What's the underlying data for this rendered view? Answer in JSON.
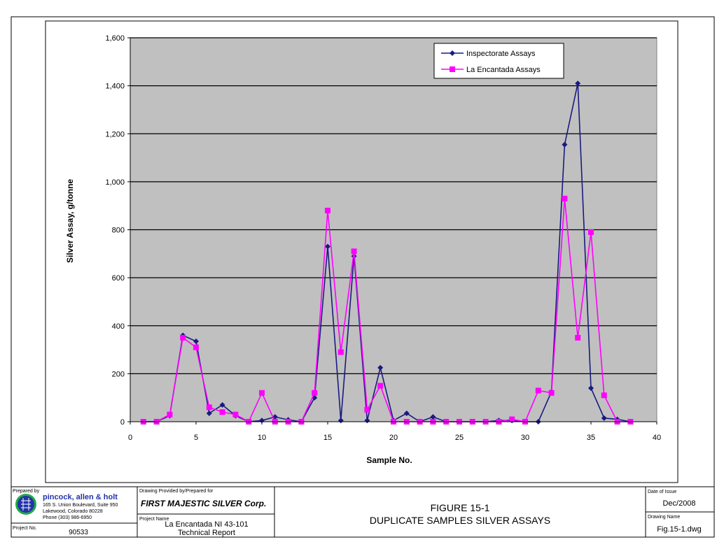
{
  "chart_data": {
    "type": "line",
    "title": "",
    "xlabel": "Sample No.",
    "ylabel": "Silver Assay,  g/tonne",
    "xlim": [
      0,
      40
    ],
    "ylim": [
      0,
      1600
    ],
    "xticks": [
      0,
      5,
      10,
      15,
      20,
      25,
      30,
      35,
      40
    ],
    "yticks": [
      0,
      200,
      400,
      600,
      800,
      1000,
      1200,
      1400,
      1600
    ],
    "ytick_labels": [
      "0",
      "200",
      "400",
      "600",
      "800",
      "1,000",
      "1,200",
      "1,400",
      "1,600"
    ],
    "grid": "horizontal",
    "legend_position": "top-right",
    "x": [
      1,
      2,
      3,
      4,
      5,
      6,
      7,
      8,
      9,
      10,
      11,
      12,
      13,
      14,
      15,
      16,
      17,
      18,
      19,
      20,
      21,
      22,
      23,
      24,
      25,
      26,
      27,
      28,
      29,
      30,
      31,
      32,
      33,
      34,
      35,
      36,
      37,
      38
    ],
    "series": [
      {
        "name": "Inspectorate Assays",
        "color": "#1a1a80",
        "marker": "diamond",
        "values": [
          0,
          0,
          25,
          360,
          335,
          35,
          70,
          25,
          0,
          5,
          20,
          8,
          0,
          100,
          730,
          5,
          690,
          5,
          225,
          5,
          35,
          0,
          20,
          0,
          0,
          0,
          0,
          5,
          5,
          0,
          0,
          125,
          1155,
          1410,
          140,
          15,
          10,
          0
        ]
      },
      {
        "name": "La Encantada Assays",
        "color": "#ff00ff",
        "marker": "square",
        "values": [
          0,
          0,
          30,
          350,
          310,
          60,
          40,
          30,
          0,
          120,
          0,
          0,
          0,
          120,
          880,
          290,
          710,
          50,
          150,
          0,
          0,
          0,
          0,
          0,
          0,
          0,
          0,
          0,
          10,
          0,
          130,
          120,
          930,
          350,
          790,
          110,
          0,
          0
        ]
      }
    ]
  },
  "title_block": {
    "prepared_by_label": "Prepared by",
    "company_name": "pincock, allen & holt",
    "address_line1": "165 S. Union Boulevard, Suite 950",
    "address_line2": "Lakewood, Colorado 80228",
    "phone": "Phone (303) 986-6950",
    "project_no_label": "Project No.",
    "project_no": "90533",
    "drawing_provided_label": "Drawing Provided by/Prepared for",
    "client": "FIRST MAJESTIC SILVER Corp.",
    "project_name_label": "Project Name",
    "project_name_line1": "La Encantada NI 43-101",
    "project_name_line2": "Technical Report",
    "figure_number": "FIGURE 15-1",
    "figure_title": "DUPLICATE SAMPLES SILVER ASSAYS",
    "date_label": "Date of Issue",
    "date": "Dec/2008",
    "drawing_name_label": "Drawing Name",
    "drawing_name": "Fig.15-1.dwg"
  },
  "colors": {
    "plot_background": "#c0c0c0",
    "gridline": "#000000",
    "logo_blue": "#2233aa",
    "logo_green": "#22aa44"
  }
}
